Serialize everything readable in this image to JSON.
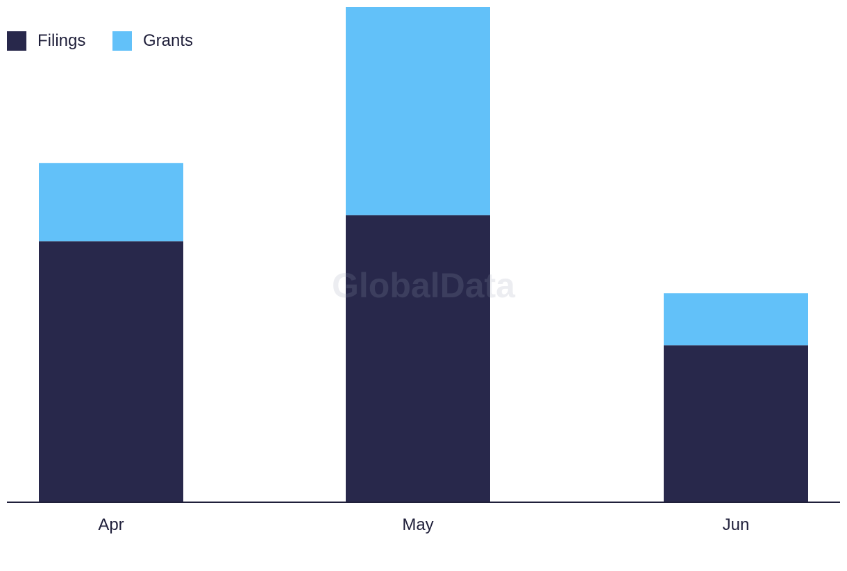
{
  "watermark": "GlobalData",
  "colors": {
    "filings": "#28284b",
    "grants": "#62c1f9",
    "axis": "#1f1f3a"
  },
  "legend": {
    "placement": "top-left",
    "items": [
      {
        "label": "Filings",
        "color": "#28284b"
      },
      {
        "label": "Grants",
        "color": "#62c1f9"
      }
    ]
  },
  "chart_data": {
    "type": "bar",
    "stacked": true,
    "categories": [
      "Apr",
      "May",
      "Jun"
    ],
    "series": [
      {
        "name": "Filings",
        "values": [
          50,
          55,
          30
        ]
      },
      {
        "name": "Grants",
        "values": [
          15,
          40,
          10
        ]
      }
    ],
    "title": "",
    "xlabel": "",
    "ylabel": "",
    "ylim": [
      0,
      95
    ],
    "grid": false
  }
}
